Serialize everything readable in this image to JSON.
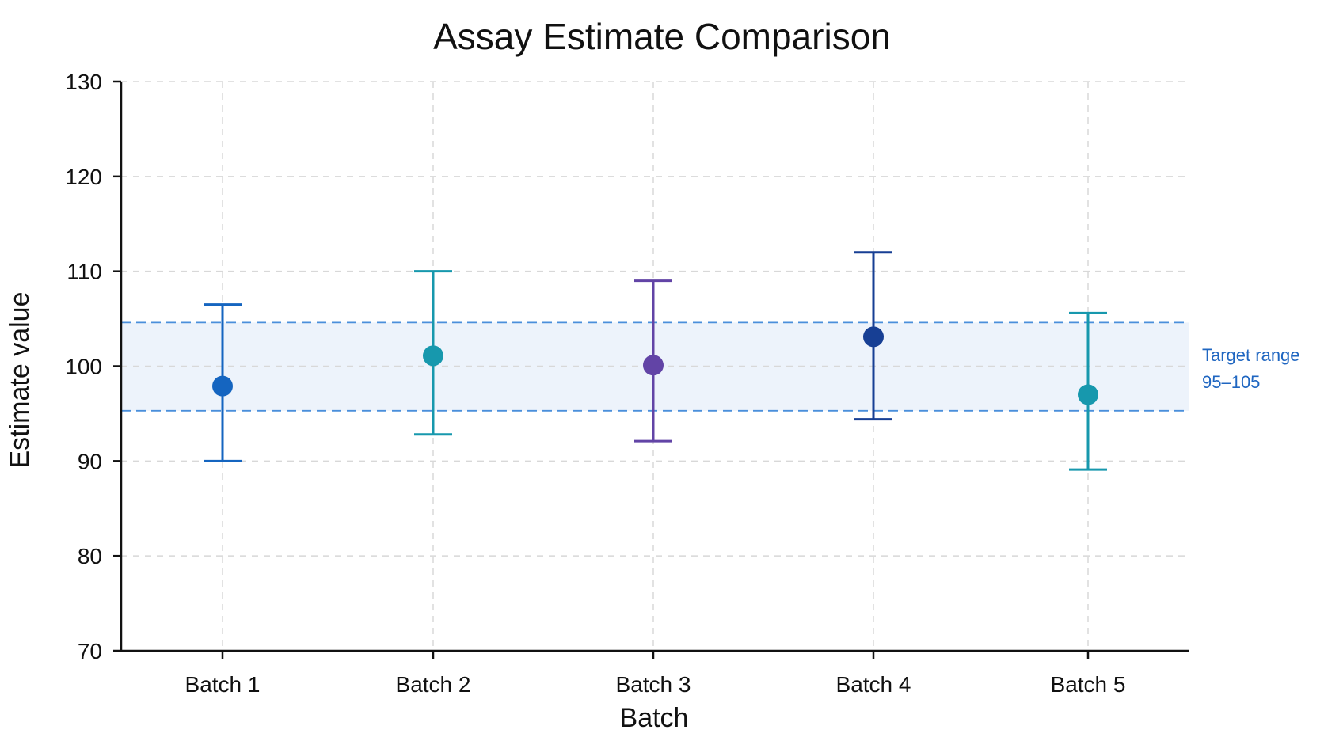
{
  "chart_data": {
    "type": "scatter",
    "title": "Assay Estimate Comparison",
    "xlabel": "Batch",
    "ylabel": "Estimate value",
    "ylim": [
      70,
      130
    ],
    "yticks": [
      70,
      80,
      90,
      100,
      110,
      120,
      130
    ],
    "categories": [
      "Batch 1",
      "Batch 2",
      "Batch 3",
      "Batch 4",
      "Batch 5"
    ],
    "series": [
      {
        "values": [
          97.9,
          101.1,
          100.1,
          103.1,
          97.0
        ],
        "lower": [
          90.0,
          92.8,
          92.1,
          94.4,
          89.1
        ],
        "upper": [
          106.5,
          110.0,
          109.0,
          112.0,
          105.6
        ],
        "colors": [
          "#1565c0",
          "#1798ad",
          "#6244a6",
          "#173f94",
          "#1798ad"
        ]
      }
    ],
    "reference_band": {
      "low": 95.3,
      "high": 104.6,
      "label_line1": "Target range",
      "label_line2": "95–105",
      "fill": "#edf3fb",
      "line_color": "#4a8fdb"
    },
    "grid": true,
    "legend": "none"
  }
}
